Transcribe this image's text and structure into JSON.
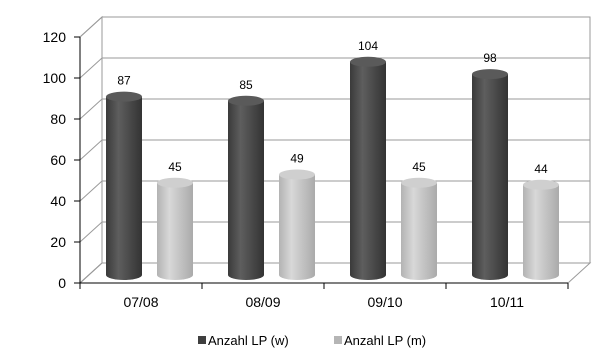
{
  "chart_data": {
    "type": "bar",
    "style": "3d-cylinder",
    "categories": [
      "07/08",
      "08/09",
      "09/10",
      "10/11"
    ],
    "series": [
      {
        "name": "Anzahl LP (w)",
        "values": [
          87,
          85,
          104,
          98
        ],
        "color": "#4a4a4a"
      },
      {
        "name": "Anzahl LP (m)",
        "values": [
          45,
          49,
          45,
          44
        ],
        "color": "#bdbdbd"
      }
    ],
    "title": "",
    "xlabel": "",
    "ylabel": "",
    "ylim": [
      0,
      120
    ],
    "yticks": [
      0,
      20,
      40,
      60,
      80,
      100,
      120
    ],
    "grid": true,
    "legend_position": "bottom"
  }
}
